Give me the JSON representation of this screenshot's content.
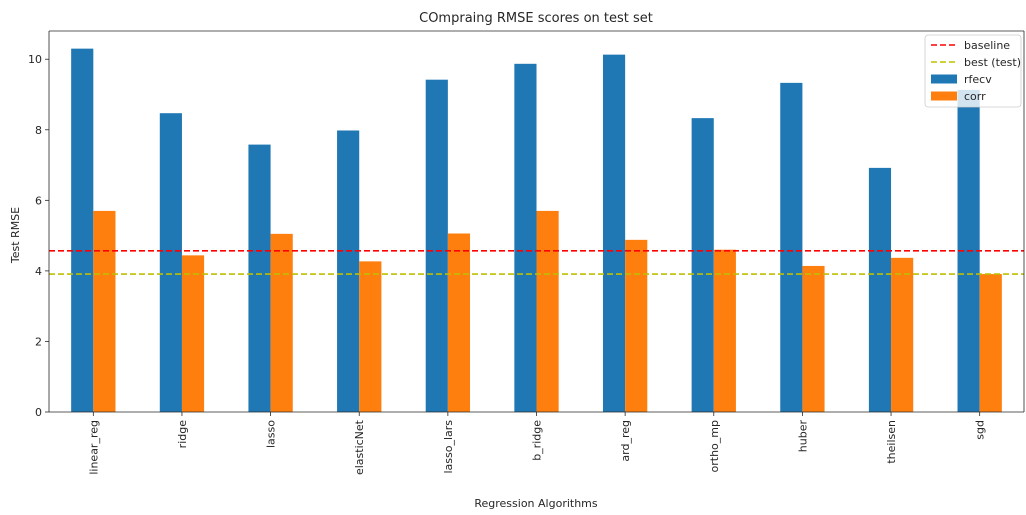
{
  "chart_data": {
    "type": "bar",
    "title": "COmpraing RMSE scores on test set",
    "xlabel": "Regression Algorithms",
    "ylabel": "Test RMSE",
    "ylim": [
      0,
      10.8
    ],
    "yticks": [
      0,
      2,
      4,
      6,
      8,
      10
    ],
    "categories": [
      "linear_reg",
      "ridge",
      "lasso",
      "elasticNet",
      "lasso_lars",
      "b_ridge",
      "ard_reg",
      "ortho_mp",
      "huber",
      "theilsen",
      "sgd"
    ],
    "series": [
      {
        "name": "rfecv",
        "color": "#1f77b4",
        "values": [
          10.3,
          8.47,
          7.58,
          7.98,
          9.42,
          9.87,
          10.13,
          8.33,
          9.33,
          6.92,
          9.13
        ]
      },
      {
        "name": "corr",
        "color": "#ff7f0e",
        "values": [
          5.7,
          4.44,
          5.05,
          4.27,
          5.06,
          5.7,
          4.88,
          4.6,
          4.14,
          4.37,
          3.91
        ]
      }
    ],
    "reference_lines": [
      {
        "name": "baseline",
        "value": 4.57,
        "color": "#ff0000",
        "style": "dashed"
      },
      {
        "name": "best (test)",
        "value": 3.91,
        "color": "#bfbf00",
        "style": "dashed"
      }
    ],
    "grid": false,
    "legend_position": "top-right"
  }
}
